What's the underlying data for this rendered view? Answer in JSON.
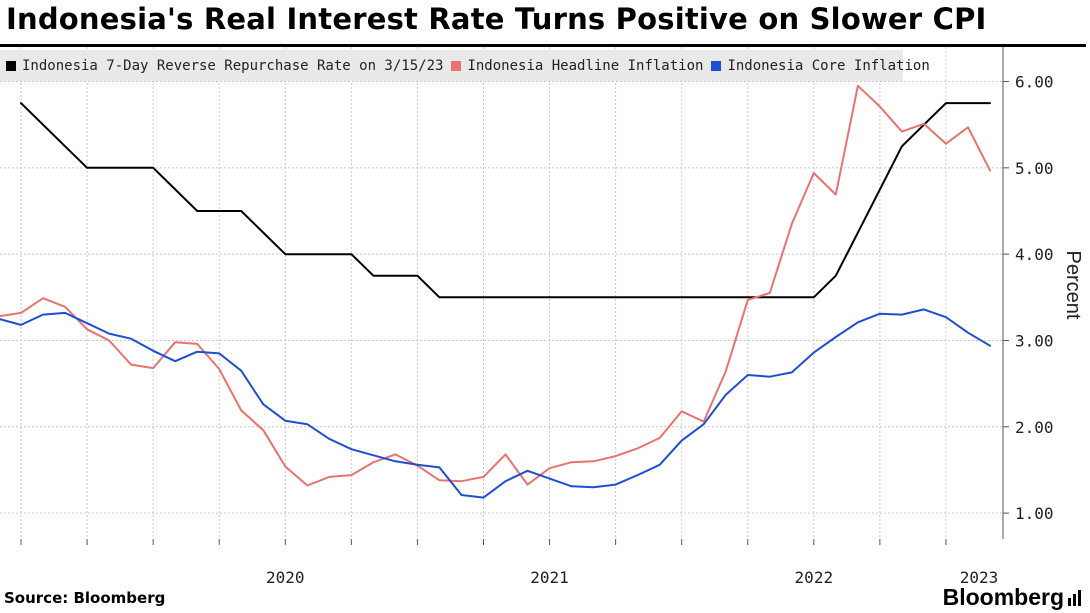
{
  "header": {
    "title": "Indonesia's Real Interest Rate Turns Positive on Slower CPI"
  },
  "footer": {
    "source": "Source: Bloomberg",
    "brand": "Bloomberg"
  },
  "chart_data": {
    "type": "line",
    "title": "Indonesia's Real Interest Rate Turns Positive on Slower CPI",
    "ylabel": "Percent",
    "xlabel": "",
    "ylim": [
      0.7,
      6.4
    ],
    "yticks": [
      "1.00",
      "2.00",
      "3.00",
      "4.00",
      "5.00",
      "6.00"
    ],
    "ytick_values": [
      1,
      2,
      3,
      4,
      5,
      6
    ],
    "xticks": [
      "2020",
      "2021",
      "2022",
      "2023"
    ],
    "grid": true,
    "legend_position": "top-left",
    "x_range": [
      "2019-06",
      "2023-03"
    ],
    "series": [
      {
        "name": "Indonesia 7-Day Reverse Repurchase Rate on 3/15/23",
        "color": "#000000",
        "points": [
          [
            "2019-07",
            5.75
          ],
          [
            "2019-08",
            5.5
          ],
          [
            "2019-09",
            5.25
          ],
          [
            "2019-10",
            5.0
          ],
          [
            "2019-11",
            5.0
          ],
          [
            "2019-12",
            5.0
          ],
          [
            "2020-01",
            5.0
          ],
          [
            "2020-02",
            4.75
          ],
          [
            "2020-03",
            4.5
          ],
          [
            "2020-04",
            4.5
          ],
          [
            "2020-05",
            4.5
          ],
          [
            "2020-06",
            4.25
          ],
          [
            "2020-07",
            4.0
          ],
          [
            "2020-08",
            4.0
          ],
          [
            "2020-09",
            4.0
          ],
          [
            "2020-10",
            4.0
          ],
          [
            "2020-11",
            3.75
          ],
          [
            "2020-12",
            3.75
          ],
          [
            "2021-01",
            3.75
          ],
          [
            "2021-02",
            3.5
          ],
          [
            "2021-03",
            3.5
          ],
          [
            "2021-04",
            3.5
          ],
          [
            "2021-05",
            3.5
          ],
          [
            "2021-06",
            3.5
          ],
          [
            "2021-07",
            3.5
          ],
          [
            "2021-08",
            3.5
          ],
          [
            "2021-09",
            3.5
          ],
          [
            "2021-10",
            3.5
          ],
          [
            "2021-11",
            3.5
          ],
          [
            "2021-12",
            3.5
          ],
          [
            "2022-01",
            3.5
          ],
          [
            "2022-02",
            3.5
          ],
          [
            "2022-03",
            3.5
          ],
          [
            "2022-04",
            3.5
          ],
          [
            "2022-05",
            3.5
          ],
          [
            "2022-06",
            3.5
          ],
          [
            "2022-07",
            3.5
          ],
          [
            "2022-08",
            3.75
          ],
          [
            "2022-09",
            4.25
          ],
          [
            "2022-10",
            4.75
          ],
          [
            "2022-11",
            5.25
          ],
          [
            "2022-12",
            5.5
          ],
          [
            "2023-01",
            5.75
          ],
          [
            "2023-02",
            5.75
          ],
          [
            "2023-03",
            5.75
          ]
        ]
      },
      {
        "name": "Indonesia Headline Inflation",
        "color": "#e8736f",
        "points": [
          [
            "2019-06",
            3.28
          ],
          [
            "2019-07",
            3.32
          ],
          [
            "2019-08",
            3.49
          ],
          [
            "2019-09",
            3.39
          ],
          [
            "2019-10",
            3.13
          ],
          [
            "2019-11",
            3.0
          ],
          [
            "2019-12",
            2.72
          ],
          [
            "2020-01",
            2.68
          ],
          [
            "2020-02",
            2.98
          ],
          [
            "2020-03",
            2.96
          ],
          [
            "2020-04",
            2.67
          ],
          [
            "2020-05",
            2.19
          ],
          [
            "2020-06",
            1.96
          ],
          [
            "2020-07",
            1.54
          ],
          [
            "2020-08",
            1.32
          ],
          [
            "2020-09",
            1.42
          ],
          [
            "2020-10",
            1.44
          ],
          [
            "2020-11",
            1.59
          ],
          [
            "2020-12",
            1.68
          ],
          [
            "2021-01",
            1.55
          ],
          [
            "2021-02",
            1.38
          ],
          [
            "2021-03",
            1.37
          ],
          [
            "2021-04",
            1.42
          ],
          [
            "2021-05",
            1.68
          ],
          [
            "2021-06",
            1.33
          ],
          [
            "2021-07",
            1.52
          ],
          [
            "2021-08",
            1.59
          ],
          [
            "2021-09",
            1.6
          ],
          [
            "2021-10",
            1.66
          ],
          [
            "2021-11",
            1.75
          ],
          [
            "2021-12",
            1.87
          ],
          [
            "2022-01",
            2.18
          ],
          [
            "2022-02",
            2.06
          ],
          [
            "2022-03",
            2.64
          ],
          [
            "2022-04",
            3.47
          ],
          [
            "2022-05",
            3.55
          ],
          [
            "2022-06",
            4.35
          ],
          [
            "2022-07",
            4.94
          ],
          [
            "2022-08",
            4.69
          ],
          [
            "2022-09",
            5.95
          ],
          [
            "2022-10",
            5.71
          ],
          [
            "2022-11",
            5.42
          ],
          [
            "2022-12",
            5.51
          ],
          [
            "2023-01",
            5.28
          ],
          [
            "2023-02",
            5.47
          ],
          [
            "2023-03",
            4.97
          ]
        ]
      },
      {
        "name": "Indonesia Core Inflation",
        "color": "#1f4fd1",
        "points": [
          [
            "2019-06",
            3.25
          ],
          [
            "2019-07",
            3.18
          ],
          [
            "2019-08",
            3.3
          ],
          [
            "2019-09",
            3.32
          ],
          [
            "2019-10",
            3.2
          ],
          [
            "2019-11",
            3.08
          ],
          [
            "2019-12",
            3.02
          ],
          [
            "2020-01",
            2.88
          ],
          [
            "2020-02",
            2.76
          ],
          [
            "2020-03",
            2.87
          ],
          [
            "2020-04",
            2.85
          ],
          [
            "2020-05",
            2.65
          ],
          [
            "2020-06",
            2.26
          ],
          [
            "2020-07",
            2.07
          ],
          [
            "2020-08",
            2.03
          ],
          [
            "2020-09",
            1.86
          ],
          [
            "2020-10",
            1.74
          ],
          [
            "2020-11",
            1.67
          ],
          [
            "2020-12",
            1.6
          ],
          [
            "2021-01",
            1.56
          ],
          [
            "2021-02",
            1.53
          ],
          [
            "2021-03",
            1.21
          ],
          [
            "2021-04",
            1.18
          ],
          [
            "2021-05",
            1.37
          ],
          [
            "2021-06",
            1.49
          ],
          [
            "2021-07",
            1.4
          ],
          [
            "2021-08",
            1.31
          ],
          [
            "2021-09",
            1.3
          ],
          [
            "2021-10",
            1.33
          ],
          [
            "2021-11",
            1.44
          ],
          [
            "2021-12",
            1.56
          ],
          [
            "2022-01",
            1.84
          ],
          [
            "2022-02",
            2.03
          ],
          [
            "2022-03",
            2.37
          ],
          [
            "2022-04",
            2.6
          ],
          [
            "2022-05",
            2.58
          ],
          [
            "2022-06",
            2.63
          ],
          [
            "2022-07",
            2.86
          ],
          [
            "2022-08",
            3.04
          ],
          [
            "2022-09",
            3.21
          ],
          [
            "2022-10",
            3.31
          ],
          [
            "2022-11",
            3.3
          ],
          [
            "2022-12",
            3.36
          ],
          [
            "2023-01",
            3.27
          ],
          [
            "2023-02",
            3.09
          ],
          [
            "2023-03",
            2.94
          ]
        ]
      }
    ]
  }
}
